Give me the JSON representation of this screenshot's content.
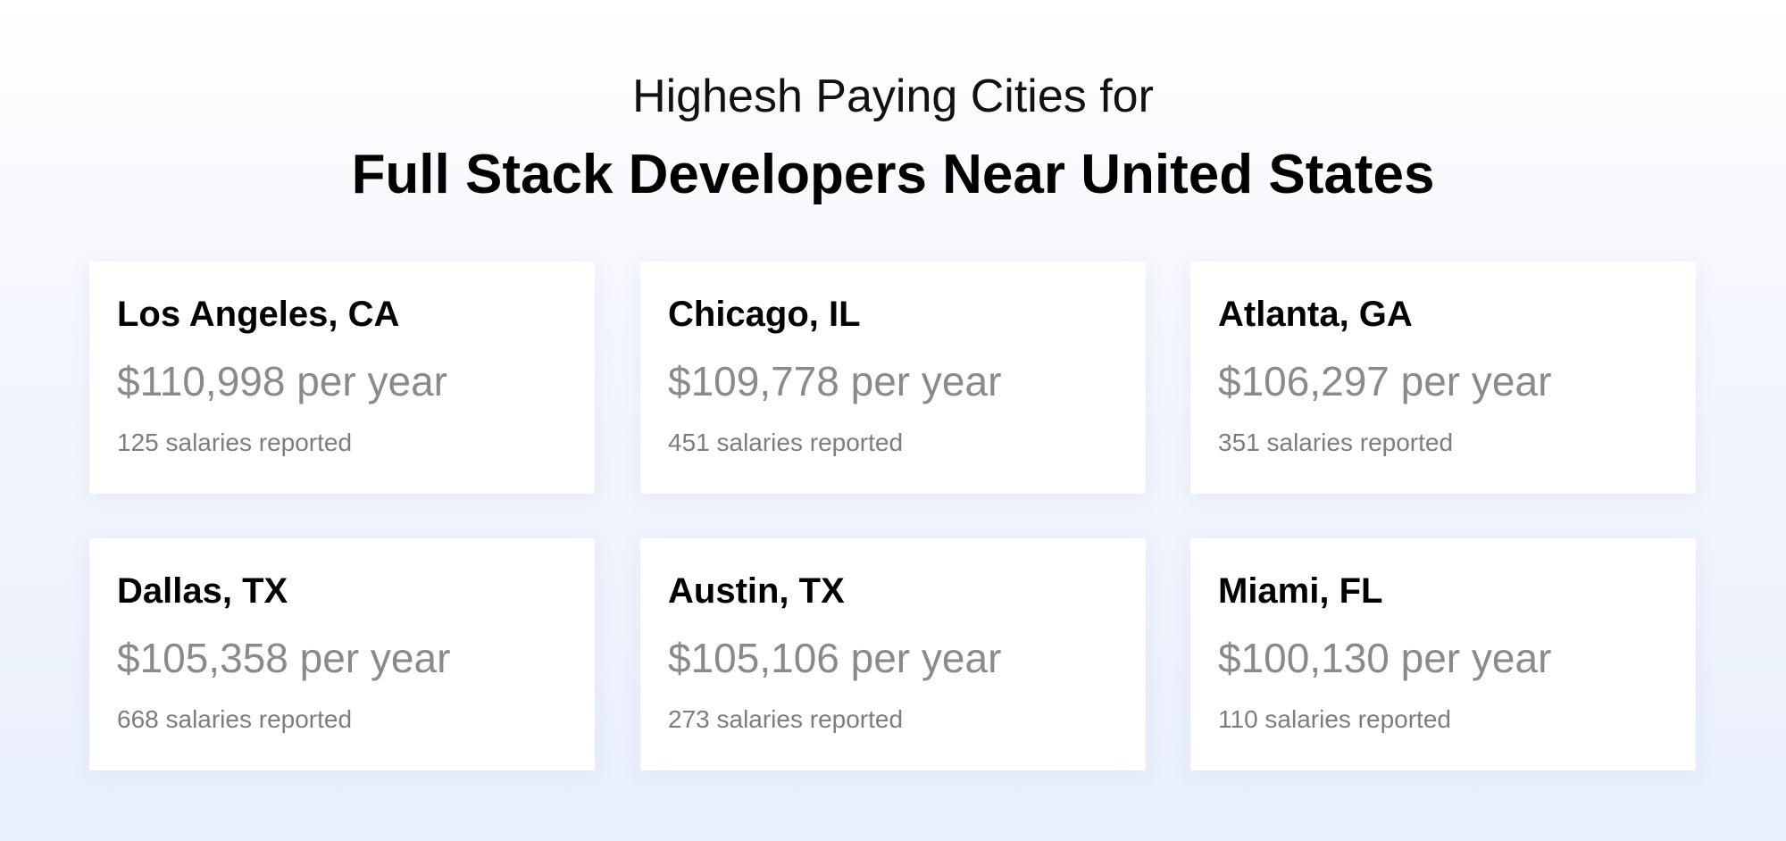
{
  "header": {
    "subtitle": "Highesh Paying Cities for",
    "title": "Full Stack Developers Near United States"
  },
  "cities": [
    {
      "name": "Los Angeles, CA",
      "salary": "$110,998 per year",
      "reported": "125 salaries reported"
    },
    {
      "name": "Chicago, IL",
      "salary": "$109,778 per year",
      "reported": "451 salaries reported"
    },
    {
      "name": "Atlanta, GA",
      "salary": "$106,297 per year",
      "reported": "351 salaries reported"
    },
    {
      "name": "Dallas, TX",
      "salary": "$105,358 per year",
      "reported": "668 salaries reported"
    },
    {
      "name": "Austin, TX",
      "salary": "$105,106 per year",
      "reported": "273 salaries reported"
    },
    {
      "name": "Miami, FL",
      "salary": "$100,130 per year",
      "reported": "110 salaries reported"
    }
  ],
  "colors": {
    "title": "#000000",
    "salary": "#8a8a8a",
    "reported": "#7d7d7d",
    "card_background": "#ffffff",
    "page_background": "#eef2fc"
  }
}
